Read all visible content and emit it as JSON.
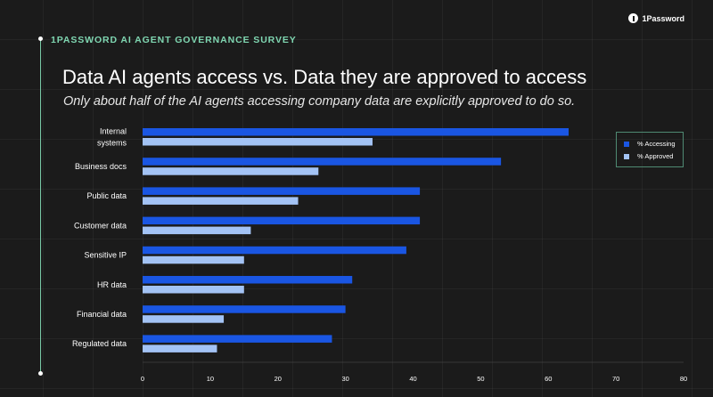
{
  "header": {
    "survey_label": "1PASSWORD AI AGENT GOVERNANCE SURVEY",
    "logo_text": "1Password"
  },
  "chart_data": {
    "type": "bar",
    "orientation": "horizontal",
    "title": "Data AI agents access vs. Data they are approved to access",
    "subtitle": "Only about half of the AI agents accessing company data are explicitly approved to do so.",
    "categories": [
      "Internal systems",
      "Business docs",
      "Public data",
      "Customer data",
      "Sensitive IP",
      "HR data",
      "Financial data",
      "Regulated data"
    ],
    "category_labels": [
      [
        "Internal",
        "systems"
      ],
      [
        "Business docs"
      ],
      [
        "Public data"
      ],
      [
        "Customer data"
      ],
      [
        "Sensitive IP"
      ],
      [
        "HR data"
      ],
      [
        "Financial data"
      ],
      [
        "Regulated data"
      ]
    ],
    "series": [
      {
        "name": "% Accessing",
        "color": "#1a56e3",
        "values": [
          63,
          53,
          41,
          41,
          39,
          31,
          30,
          28
        ]
      },
      {
        "name": "% Approved",
        "color": "#a3c3f5",
        "values": [
          34,
          26,
          23,
          16,
          15,
          15,
          12,
          11
        ]
      }
    ],
    "xlim": [
      0,
      80
    ],
    "xticks": [
      0,
      10,
      20,
      30,
      40,
      50,
      60,
      70,
      80
    ],
    "xlabel": "",
    "ylabel": "",
    "grid": false,
    "legend_position": "right"
  }
}
